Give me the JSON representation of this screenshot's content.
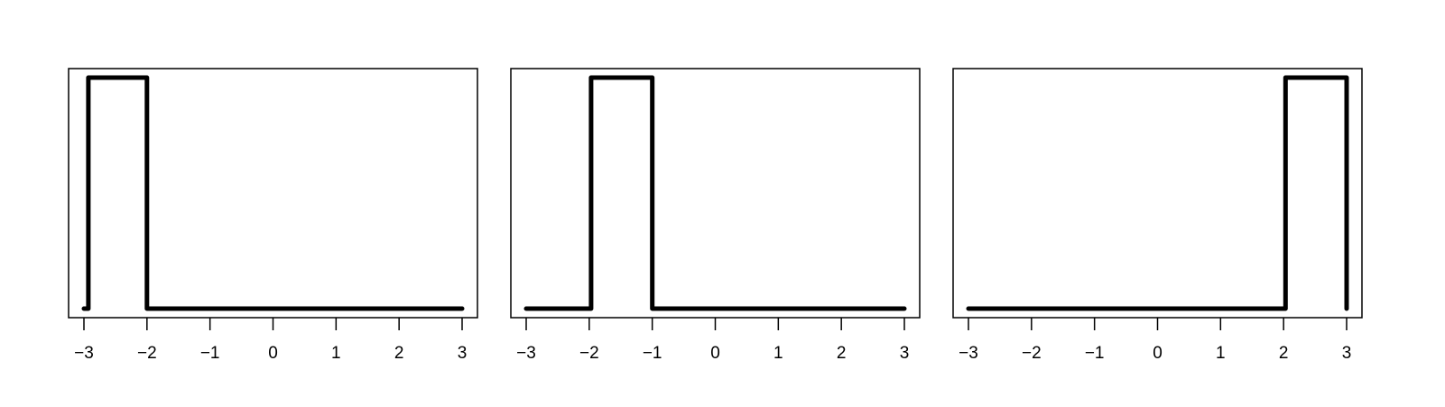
{
  "chart_data": [
    {
      "type": "line",
      "line_style": "step",
      "xlim": [
        -3,
        3
      ],
      "ylim": [
        0,
        1
      ],
      "x_ticks": [
        -3,
        -2,
        -1,
        0,
        1,
        2,
        3
      ],
      "x_tick_labels": [
        "−3",
        "−2",
        "−1",
        "0",
        "1",
        "2",
        "3"
      ],
      "y_axis_shown": false,
      "series": [
        {
          "x": [
            -3.0,
            -2.93,
            -2.93,
            -2.0,
            -2.0,
            3.0
          ],
          "y": [
            0,
            0,
            1,
            1,
            0,
            0
          ]
        }
      ]
    },
    {
      "type": "line",
      "line_style": "step",
      "xlim": [
        -3,
        3
      ],
      "ylim": [
        0,
        1
      ],
      "x_ticks": [
        -3,
        -2,
        -1,
        0,
        1,
        2,
        3
      ],
      "x_tick_labels": [
        "−3",
        "−2",
        "−1",
        "0",
        "1",
        "2",
        "3"
      ],
      "y_axis_shown": false,
      "series": [
        {
          "x": [
            -3.0,
            -1.97,
            -1.97,
            -1.0,
            -1.0,
            3.0
          ],
          "y": [
            0,
            0,
            1,
            1,
            0,
            0
          ]
        }
      ]
    },
    {
      "type": "line",
      "line_style": "step",
      "xlim": [
        -3,
        3
      ],
      "ylim": [
        0,
        1
      ],
      "x_ticks": [
        -3,
        -2,
        -1,
        0,
        1,
        2,
        3
      ],
      "x_tick_labels": [
        "−3",
        "−2",
        "−1",
        "0",
        "1",
        "2",
        "3"
      ],
      "y_axis_shown": false,
      "series": [
        {
          "x": [
            -3.0,
            2.03,
            2.03,
            3.0,
            3.0
          ],
          "y": [
            0,
            0,
            1,
            1,
            0
          ]
        }
      ]
    }
  ]
}
